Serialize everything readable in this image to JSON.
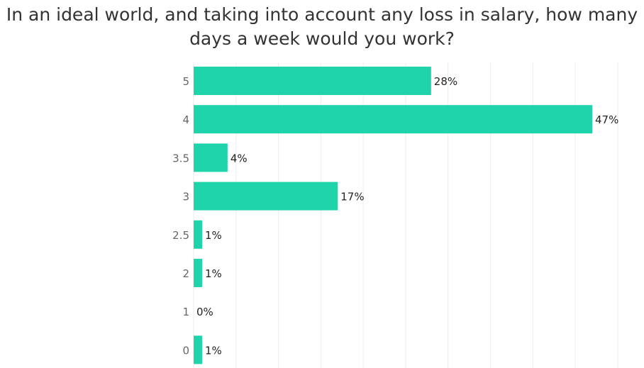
{
  "chart_data": {
    "type": "bar",
    "orientation": "horizontal",
    "title_lines": [
      "In an ideal world, and taking into account any loss in salary, how many",
      "days a week would you work?"
    ],
    "categories": [
      "5",
      "4",
      "3.5",
      "3",
      "2.5",
      "2",
      "1",
      "0"
    ],
    "values": [
      28,
      47,
      4,
      17,
      1,
      1,
      0,
      1
    ],
    "value_labels": [
      "28%",
      "47%",
      "4%",
      "17%",
      "1%",
      "1%",
      "0%",
      "1%"
    ],
    "xlim": [
      0,
      50
    ],
    "grid": true,
    "bar_color": "#1fd4aa",
    "grid_color": "#eeeeee"
  }
}
